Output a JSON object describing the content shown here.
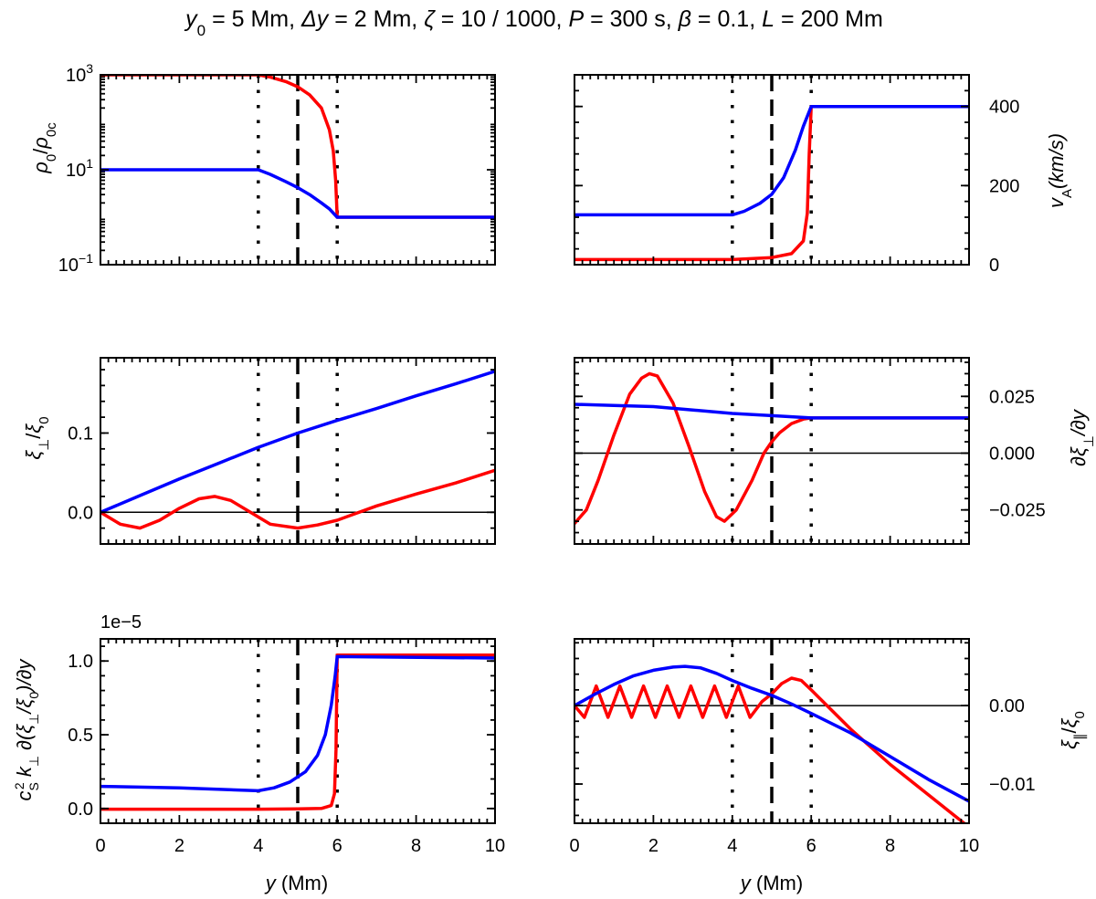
{
  "title": "y0 = 5 Mm, Δy = 2 Mm, ζ = 10 / 1000, P = 300 s, β = 0.1, L = 200 Mm",
  "title_parts": {
    "y0_sym": "y",
    "y0_sub": "0",
    "y0_val": " = 5 Mm, ",
    "dy_sym": "Δy",
    "dy_val": " = 2 Mm, ",
    "zeta_sym": "ζ",
    "zeta_val": " = 10 / 1000, ",
    "p_sym": "P",
    "p_val": " = 300 s, ",
    "beta_sym": "β",
    "beta_val": " = 0.1, ",
    "l_sym": "L",
    "l_val": " = 200 Mm"
  },
  "colors": {
    "red": "#ff0000",
    "blue": "#0000ff",
    "black": "#000000"
  },
  "chart_data": [
    {
      "type": "line",
      "panel": "top-left",
      "ylabel": "ρ0/ρ0c",
      "ylabel_parts": {
        "sym": "ρ",
        "sub": "0",
        "slash": "/",
        "sym2": "ρ",
        "sub2": "0c"
      },
      "yscale": "log",
      "xlim": [
        0,
        10
      ],
      "ylim": [
        0.1,
        1000
      ],
      "yticks": [
        0.1,
        10,
        1000
      ],
      "ytick_labels": [
        {
          "base": "10",
          "exp": "−1"
        },
        {
          "base": "10",
          "exp": "1"
        },
        {
          "base": "10",
          "exp": "3"
        }
      ],
      "xticks": [
        0,
        2,
        4,
        6,
        8,
        10
      ],
      "show_xtick_labels": false,
      "yaxis_side": "left",
      "vlines": {
        "dotted": [
          4,
          6
        ],
        "dashed": [
          5
        ]
      },
      "series": [
        {
          "color": "red",
          "points": [
            [
              0,
              1000
            ],
            [
              2,
              1000
            ],
            [
              4,
              1000
            ],
            [
              4.3,
              900
            ],
            [
              4.7,
              720
            ],
            [
              5,
              560
            ],
            [
              5.3,
              380
            ],
            [
              5.6,
              200
            ],
            [
              5.8,
              70
            ],
            [
              5.9,
              25
            ],
            [
              5.96,
              6
            ],
            [
              6,
              1
            ],
            [
              10,
              1
            ]
          ]
        },
        {
          "color": "blue",
          "points": [
            [
              0,
              10
            ],
            [
              2,
              10
            ],
            [
              4,
              10
            ],
            [
              4.3,
              8
            ],
            [
              4.7,
              5.6
            ],
            [
              5,
              4.2
            ],
            [
              5.3,
              3
            ],
            [
              5.6,
              2
            ],
            [
              5.8,
              1.5
            ],
            [
              6,
              1
            ],
            [
              10,
              1
            ]
          ]
        }
      ]
    },
    {
      "type": "line",
      "panel": "top-right",
      "ylabel": "vA(km/s)",
      "ylabel_parts": {
        "sym": "v",
        "sub": "A",
        "rest": "(km/s)"
      },
      "yscale": "linear",
      "xlim": [
        0,
        10
      ],
      "ylim": [
        0,
        480
      ],
      "yticks": [
        0,
        200,
        400
      ],
      "ytick_labels": [
        "0",
        "200",
        "400"
      ],
      "xticks": [
        0,
        2,
        4,
        6,
        8,
        10
      ],
      "show_xtick_labels": false,
      "yaxis_side": "right",
      "vlines": {
        "dotted": [
          4,
          6
        ],
        "dashed": [
          5
        ]
      },
      "series": [
        {
          "color": "red",
          "points": [
            [
              0,
              13
            ],
            [
              4,
              13
            ],
            [
              5,
              18
            ],
            [
              5.5,
              28
            ],
            [
              5.8,
              60
            ],
            [
              5.9,
              130
            ],
            [
              5.95,
              280
            ],
            [
              6,
              400
            ],
            [
              10,
              400
            ]
          ]
        },
        {
          "color": "blue",
          "points": [
            [
              0,
              126
            ],
            [
              4,
              126
            ],
            [
              4.3,
              135
            ],
            [
              4.7,
              155
            ],
            [
              5,
              178
            ],
            [
              5.3,
              220
            ],
            [
              5.6,
              290
            ],
            [
              5.8,
              350
            ],
            [
              6,
              400
            ],
            [
              10,
              400
            ]
          ]
        }
      ]
    },
    {
      "type": "line",
      "panel": "middle-left",
      "ylabel": "ξ⊥/ξ0",
      "ylabel_parts": {
        "sym": "ξ",
        "sub": "⊥",
        "slash": "/",
        "sym2": "ξ",
        "sub2": "0"
      },
      "yscale": "linear",
      "xlim": [
        0,
        10
      ],
      "ylim": [
        -0.04,
        0.195
      ],
      "yticks": [
        0,
        0.1
      ],
      "ytick_labels": [
        "0.0",
        "0.1"
      ],
      "xticks": [
        0,
        2,
        4,
        6,
        8,
        10
      ],
      "show_xtick_labels": false,
      "yaxis_side": "left",
      "hline": 0,
      "vlines": {
        "dotted": [
          4,
          6
        ],
        "dashed": [
          5
        ]
      },
      "series": [
        {
          "color": "red",
          "points": [
            [
              0,
              0
            ],
            [
              0.5,
              -0.015
            ],
            [
              1,
              -0.02
            ],
            [
              1.5,
              -0.01
            ],
            [
              2,
              0.005
            ],
            [
              2.5,
              0.017
            ],
            [
              2.9,
              0.02
            ],
            [
              3.3,
              0.015
            ],
            [
              3.8,
              0
            ],
            [
              4.3,
              -0.015
            ],
            [
              5,
              -0.02
            ],
            [
              5.5,
              -0.016
            ],
            [
              6,
              -0.01
            ],
            [
              6.5,
              -0.001
            ],
            [
              7,
              0.008
            ],
            [
              8,
              0.023
            ],
            [
              9,
              0.037
            ],
            [
              10,
              0.053
            ]
          ]
        },
        {
          "color": "blue",
          "points": [
            [
              0,
              0
            ],
            [
              1,
              0.021
            ],
            [
              2,
              0.042
            ],
            [
              3,
              0.062
            ],
            [
              4,
              0.082
            ],
            [
              5,
              0.1
            ],
            [
              6,
              0.116
            ],
            [
              7,
              0.131
            ],
            [
              8,
              0.147
            ],
            [
              9,
              0.162
            ],
            [
              10,
              0.178
            ]
          ]
        }
      ]
    },
    {
      "type": "line",
      "panel": "middle-right",
      "ylabel": "∂ξ⊥/∂y",
      "ylabel_parts": {
        "sym": "∂ξ",
        "sub": "⊥",
        "rest": "/∂y"
      },
      "yscale": "linear",
      "xlim": [
        0,
        10
      ],
      "ylim": [
        -0.04,
        0.042
      ],
      "yticks": [
        -0.025,
        0,
        0.025
      ],
      "ytick_labels": [
        "−0.025",
        "0.000",
        "0.025"
      ],
      "xticks": [
        0,
        2,
        4,
        6,
        8,
        10
      ],
      "show_xtick_labels": false,
      "yaxis_side": "right",
      "hline": 0,
      "vlines": {
        "dotted": [
          4,
          6
        ],
        "dashed": [
          5
        ]
      },
      "series": [
        {
          "color": "red",
          "points": [
            [
              0,
              -0.031
            ],
            [
              0.3,
              -0.025
            ],
            [
              0.6,
              -0.012
            ],
            [
              1,
              0.008
            ],
            [
              1.4,
              0.026
            ],
            [
              1.7,
              0.033
            ],
            [
              1.9,
              0.035
            ],
            [
              2.1,
              0.034
            ],
            [
              2.5,
              0.022
            ],
            [
              2.9,
              0.003
            ],
            [
              3.3,
              -0.017
            ],
            [
              3.6,
              -0.028
            ],
            [
              3.8,
              -0.03
            ],
            [
              4.1,
              -0.025
            ],
            [
              4.5,
              -0.012
            ],
            [
              4.8,
              0
            ],
            [
              5,
              0.005
            ],
            [
              5.2,
              0.009
            ],
            [
              5.5,
              0.013
            ],
            [
              5.8,
              0.015
            ],
            [
              6,
              0.0155
            ],
            [
              10,
              0.0155
            ]
          ]
        },
        {
          "color": "blue",
          "points": [
            [
              0,
              0.0215
            ],
            [
              1,
              0.021
            ],
            [
              2,
              0.0205
            ],
            [
              3,
              0.019
            ],
            [
              4,
              0.0175
            ],
            [
              5,
              0.0165
            ],
            [
              6,
              0.0155
            ],
            [
              10,
              0.0155
            ]
          ]
        }
      ]
    },
    {
      "type": "line",
      "panel": "bottom-left",
      "ylabel": "cS2 k⊥ ∂(ξ⊥/ξ0)/∂y",
      "ylabel_parts": {
        "c": "c",
        "c_sub": "S",
        "c_sup": "2",
        "k": " k",
        "k_sub": "⊥",
        "mid": " ∂(ξ",
        "xi_sub": "⊥",
        "slash": "/ξ",
        "xi0_sub": "0",
        "end": ")/∂y"
      },
      "offset_label": "1e−5",
      "yscale": "linear",
      "xlim": [
        0,
        10
      ],
      "ylim": [
        -0.1,
        1.15
      ],
      "yticks": [
        0,
        0.5,
        1.0
      ],
      "ytick_labels": [
        "0.0",
        "0.5",
        "1.0"
      ],
      "xticks": [
        0,
        2,
        4,
        6,
        8,
        10
      ],
      "xtick_labels": [
        "0",
        "2",
        "4",
        "6",
        "8",
        "10"
      ],
      "show_xtick_labels": true,
      "xlabel": "y (Mm)",
      "xlabel_parts": {
        "sym": "y",
        "rest": " (Mm)"
      },
      "yaxis_side": "left",
      "vlines": {
        "dotted": [
          4,
          6
        ],
        "dashed": [
          5
        ]
      },
      "series": [
        {
          "color": "red",
          "points": [
            [
              0,
              -0.005
            ],
            [
              4,
              -0.005
            ],
            [
              5,
              -0.003
            ],
            [
              5.6,
              0.0
            ],
            [
              5.85,
              0.02
            ],
            [
              5.93,
              0.1
            ],
            [
              5.97,
              0.4
            ],
            [
              6,
              1.04
            ],
            [
              10,
              1.04
            ]
          ]
        },
        {
          "color": "blue",
          "points": [
            [
              0,
              0.15
            ],
            [
              2,
              0.14
            ],
            [
              4,
              0.12
            ],
            [
              4.4,
              0.14
            ],
            [
              4.8,
              0.18
            ],
            [
              5.2,
              0.25
            ],
            [
              5.5,
              0.36
            ],
            [
              5.7,
              0.5
            ],
            [
              5.85,
              0.7
            ],
            [
              5.95,
              0.9
            ],
            [
              6,
              1.03
            ],
            [
              10,
              1.02
            ]
          ]
        }
      ]
    },
    {
      "type": "line",
      "panel": "bottom-right",
      "ylabel": "ξ∥/ξ0",
      "ylabel_parts": {
        "sym": "ξ",
        "sub": "∥",
        "slash": "/",
        "sym2": "ξ",
        "sub2": "0"
      },
      "yscale": "linear",
      "xlim": [
        0,
        10
      ],
      "ylim": [
        -0.015,
        0.0085
      ],
      "yticks": [
        -0.01,
        0
      ],
      "ytick_labels": [
        "−0.01",
        "0.00"
      ],
      "xticks": [
        0,
        2,
        4,
        6,
        8,
        10
      ],
      "xtick_labels": [
        "0",
        "2",
        "4",
        "6",
        "8",
        "10"
      ],
      "show_xtick_labels": true,
      "xlabel": "y (Mm)",
      "xlabel_parts": {
        "sym": "y",
        "rest": " (Mm)"
      },
      "yaxis_side": "right",
      "hline": 0,
      "vlines": {
        "dotted": [
          4,
          6
        ],
        "dashed": [
          5
        ]
      },
      "series": [
        {
          "color": "red",
          "points": [
            [
              0,
              0
            ],
            [
              0.25,
              -0.0015
            ],
            [
              0.55,
              0.0025
            ],
            [
              0.85,
              -0.0015
            ],
            [
              1.15,
              0.0025
            ],
            [
              1.45,
              -0.0015
            ],
            [
              1.75,
              0.0025
            ],
            [
              2.05,
              -0.0015
            ],
            [
              2.35,
              0.0025
            ],
            [
              2.65,
              -0.0015
            ],
            [
              2.95,
              0.0025
            ],
            [
              3.25,
              -0.0015
            ],
            [
              3.55,
              0.0025
            ],
            [
              3.85,
              -0.0015
            ],
            [
              4.15,
              0.0025
            ],
            [
              4.45,
              -0.0015
            ],
            [
              4.75,
              0.0005
            ],
            [
              5,
              0.0015
            ],
            [
              5.25,
              0.0028
            ],
            [
              5.5,
              0.0035
            ],
            [
              5.75,
              0.0032
            ],
            [
              6,
              0.002
            ],
            [
              6.5,
              -0.0005
            ],
            [
              7,
              -0.003
            ],
            [
              8,
              -0.0075
            ],
            [
              9,
              -0.0115
            ],
            [
              10,
              -0.0155
            ]
          ]
        },
        {
          "color": "blue",
          "points": [
            [
              0,
              0
            ],
            [
              0.5,
              0.0014
            ],
            [
              1,
              0.0027
            ],
            [
              1.5,
              0.0038
            ],
            [
              2,
              0.0045
            ],
            [
              2.5,
              0.0049
            ],
            [
              2.8,
              0.005
            ],
            [
              3.2,
              0.0048
            ],
            [
              3.6,
              0.0041
            ],
            [
              4,
              0.0032
            ],
            [
              4.5,
              0.0022
            ],
            [
              5,
              0.0013
            ],
            [
              5.5,
              0.0002
            ],
            [
              6,
              -0.001
            ],
            [
              7,
              -0.0035
            ],
            [
              8,
              -0.0065
            ],
            [
              9,
              -0.0095
            ],
            [
              10,
              -0.0122
            ]
          ]
        }
      ]
    }
  ]
}
